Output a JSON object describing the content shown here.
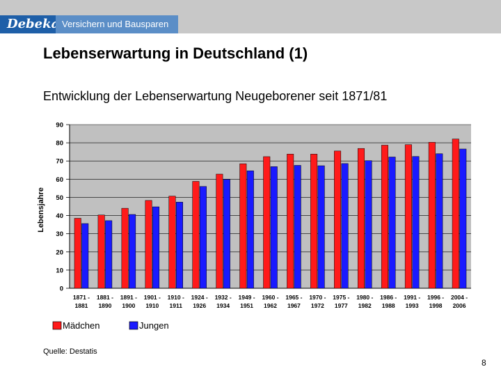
{
  "header": {
    "logo": "Debeka",
    "tagline": "Versichern und Bausparen"
  },
  "slide": {
    "title": "Lebenserwartung in Deutschland (1)",
    "source": "Quelle: Destatis",
    "page_number": "8"
  },
  "colors": {
    "maedchen": "#ff1a1a",
    "jungen": "#1a1aff"
  },
  "chart_data": {
    "type": "bar",
    "title": "Entwicklung der Lebenserwartung Neugeborener seit 1871/81",
    "xlabel": "",
    "ylabel": "Lebensjahre",
    "ylim": [
      0,
      90
    ],
    "yticks": [
      "0",
      "10",
      "20",
      "30",
      "40",
      "50",
      "60",
      "70",
      "80",
      "90"
    ],
    "categories": [
      [
        "1871 -",
        "1881"
      ],
      [
        "1881 -",
        "1890"
      ],
      [
        "1891 -",
        "1900"
      ],
      [
        "1901 -",
        "1910"
      ],
      [
        "1910 -",
        "1911"
      ],
      [
        "1924 -",
        "1926"
      ],
      [
        "1932 -",
        "1934"
      ],
      [
        "1949 -",
        "1951"
      ],
      [
        "1960 -",
        "1962"
      ],
      [
        "1965 -",
        "1967"
      ],
      [
        "1970 -",
        "1972"
      ],
      [
        "1975 -",
        "1977"
      ],
      [
        "1980 -",
        "1982"
      ],
      [
        "1986 -",
        "1988"
      ],
      [
        "1991 -",
        "1993"
      ],
      [
        "1996 -",
        "1998"
      ],
      [
        "2004 -",
        "2006"
      ]
    ],
    "series": [
      {
        "name": "Mädchen",
        "values": [
          38.5,
          40.3,
          44.0,
          48.3,
          50.7,
          58.8,
          62.8,
          68.5,
          72.4,
          73.8,
          73.8,
          75.5,
          76.9,
          78.7,
          79.0,
          80.3,
          82.1
        ]
      },
      {
        "name": "Jungen",
        "values": [
          35.6,
          37.2,
          40.6,
          44.8,
          47.4,
          56.0,
          59.9,
          64.6,
          66.9,
          67.6,
          67.4,
          68.6,
          70.2,
          72.2,
          72.5,
          74.0,
          76.6
        ]
      }
    ],
    "legend_position": "bottom-left"
  }
}
